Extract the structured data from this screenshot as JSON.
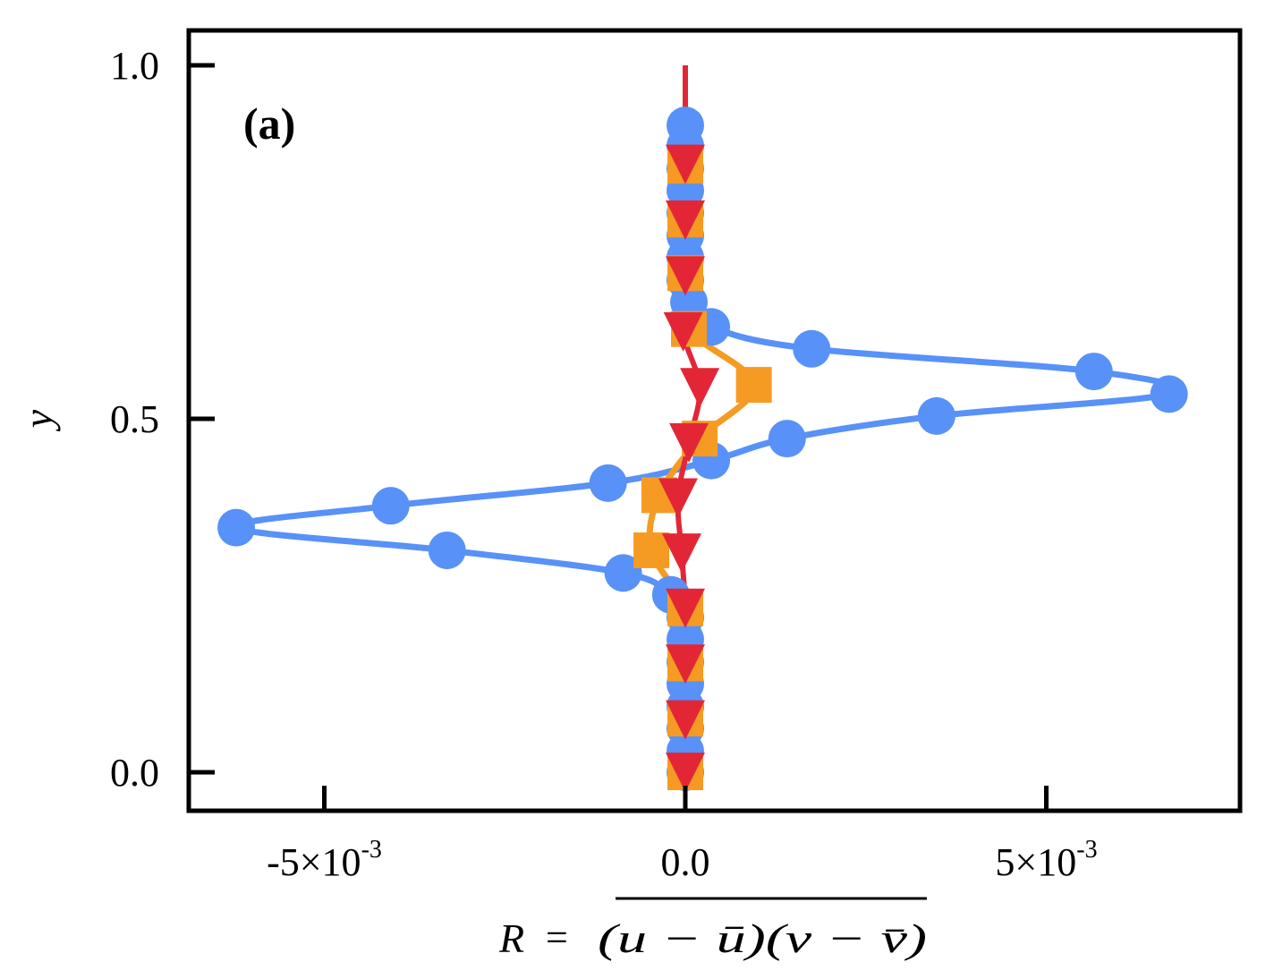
{
  "chart_data": {
    "type": "line",
    "title": "",
    "panel_label": "(a)",
    "xlabel": "R = (u − ū)(v − v̄)",
    "xlabel_parts": {
      "lhs": "R",
      "eq": "=",
      "rhs": "(u − ū)(v − v̄)"
    },
    "ylabel": "y",
    "xlim": [
      -0.0069,
      0.0077
    ],
    "ylim": [
      -0.055,
      1.055
    ],
    "xticks": [
      -0.005,
      0.0,
      0.005
    ],
    "xtick_labels": [
      {
        "mant": "-5×10",
        "exp": "-3"
      },
      {
        "mant": "0.0",
        "exp": ""
      },
      {
        "mant": "5×10",
        "exp": "-3"
      }
    ],
    "yticks": [
      0.0,
      0.5,
      1.0
    ],
    "ytick_labels": [
      "0.0",
      "0.5",
      "1.0"
    ],
    "grid": false,
    "legend": "none",
    "series": [
      {
        "name": "blue-circles",
        "color": "#5891F7",
        "marker": "circle",
        "x": [
          0.0,
          0.0,
          0.0,
          0.0,
          0.0,
          0.0,
          0.0,
          0.0,
          5e-05,
          0.00036,
          0.00175,
          0.00566,
          0.0067,
          0.00348,
          0.00141,
          0.00036,
          -0.00107,
          -0.00408,
          -0.00622,
          -0.0033,
          -0.00086,
          -0.0002,
          0.0,
          0.0,
          0.0,
          0.0,
          0.0,
          0.0,
          0.0,
          0.0
        ],
        "y": [
          0.915,
          0.886,
          0.854,
          0.823,
          0.791,
          0.759,
          0.728,
          0.696,
          0.665,
          0.63,
          0.599,
          0.567,
          0.535,
          0.504,
          0.472,
          0.441,
          0.409,
          0.377,
          0.346,
          0.314,
          0.282,
          0.251,
          0.219,
          0.188,
          0.156,
          0.125,
          0.093,
          0.062,
          0.03,
          0.0
        ]
      },
      {
        "name": "orange-squares",
        "color": "#F59B23",
        "marker": "square",
        "x": [
          0.0,
          0.0,
          0.0,
          5e-05,
          0.00095,
          0.0002,
          -0.00036,
          -0.00047,
          0.0,
          0.0,
          0.0,
          0.0
        ],
        "y": [
          0.858,
          0.782,
          0.706,
          0.627,
          0.548,
          0.472,
          0.392,
          0.314,
          0.232,
          0.154,
          0.076,
          0.0
        ]
      },
      {
        "name": "red-triangles",
        "color": "#E32636",
        "marker": "triangle-down",
        "line_top": 1.0,
        "x": [
          0.0,
          0.0,
          0.0,
          -3e-05,
          0.0002,
          5e-05,
          -0.0001,
          -5e-05,
          0.0,
          0.0,
          0.0,
          0.0
        ],
        "y": [
          0.86,
          0.781,
          0.702,
          0.623,
          0.544,
          0.466,
          0.388,
          0.31,
          0.232,
          0.153,
          0.074,
          0.0
        ]
      }
    ]
  }
}
